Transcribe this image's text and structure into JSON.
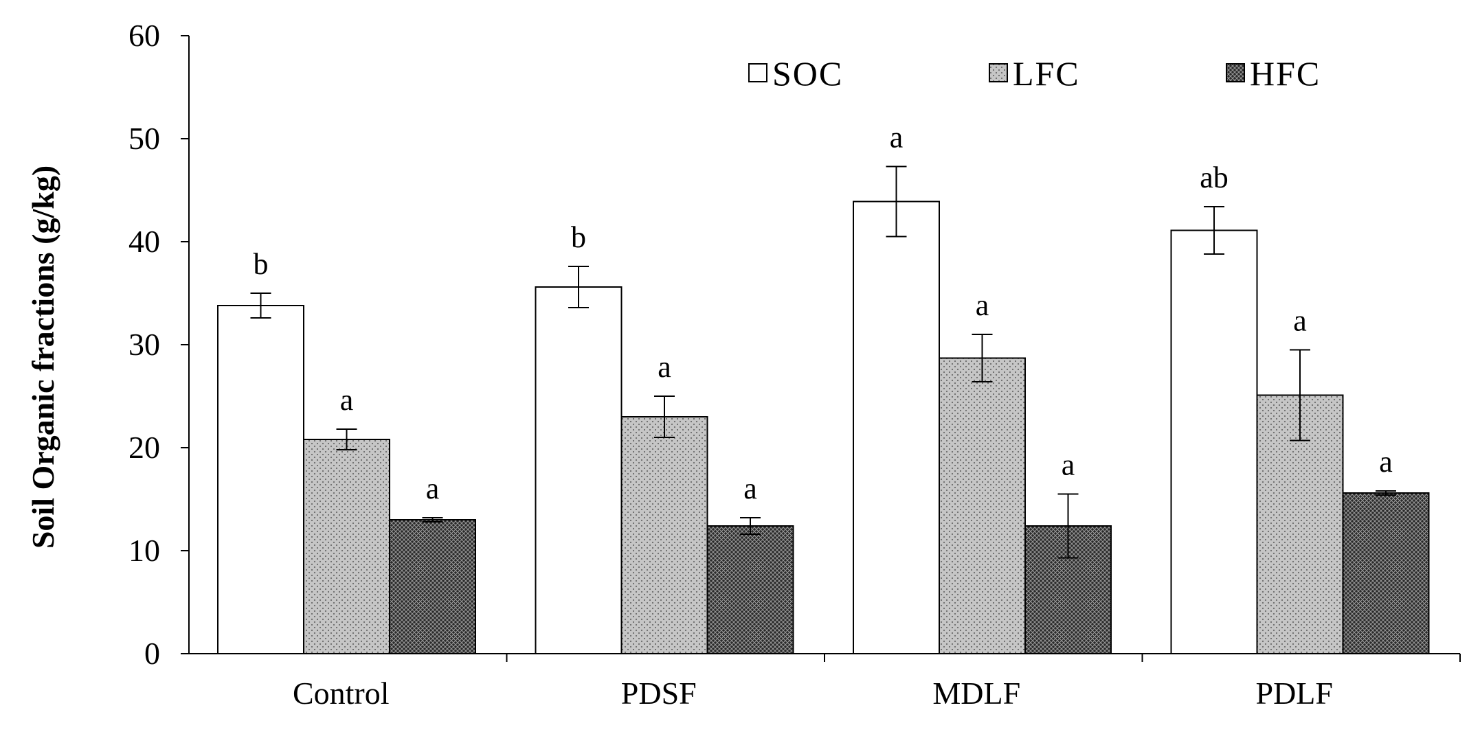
{
  "chart_data": {
    "type": "bar",
    "title": "",
    "xlabel": "",
    "ylabel": "Soil Organic fractions (g/kg)",
    "ylim": [
      0,
      60
    ],
    "yticks": [
      0,
      10,
      20,
      30,
      40,
      50,
      60
    ],
    "grid": false,
    "legend_position": "top-right",
    "categories": [
      "Control",
      "PDSF",
      "MDLF",
      "PDLF"
    ],
    "series": [
      {
        "name": "SOC",
        "fill": "#ffffff",
        "pattern": "none",
        "values": [
          33.8,
          35.6,
          43.9,
          41.1
        ],
        "errors": [
          1.2,
          2.0,
          3.4,
          2.3
        ],
        "letters": [
          "b",
          "b",
          "a",
          "ab"
        ]
      },
      {
        "name": "LFC",
        "fill": "#c9c9c9",
        "pattern": "dots",
        "values": [
          20.8,
          23.0,
          28.7,
          25.1
        ],
        "errors": [
          1.0,
          2.0,
          2.3,
          4.4
        ],
        "letters": [
          "a",
          "a",
          "a",
          "a"
        ]
      },
      {
        "name": "HFC",
        "fill": "#3a3a3a",
        "pattern": "crosshatch",
        "values": [
          13.0,
          12.4,
          12.4,
          15.6
        ],
        "errors": [
          0.2,
          0.8,
          3.1,
          0.2
        ],
        "letters": [
          "a",
          "a",
          "a",
          "a"
        ]
      }
    ]
  }
}
